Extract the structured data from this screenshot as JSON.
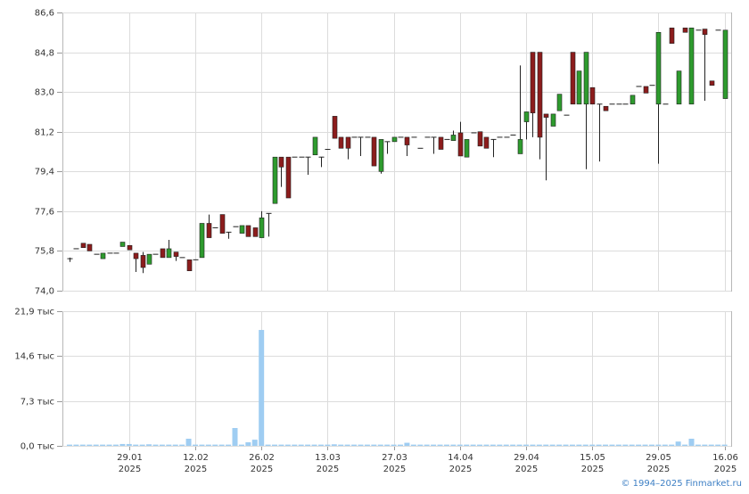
{
  "chart_data": [
    {
      "type": "candlestick",
      "up_color": "#2e9b2e",
      "down_color": "#8c1c1c",
      "open": [
        75.45,
        75.9,
        76.15,
        76.1,
        75.65,
        75.45,
        75.7,
        75.7,
        76.0,
        76.05,
        75.7,
        75.6,
        75.2,
        75.65,
        75.9,
        75.5,
        75.75,
        75.5,
        75.4,
        75.4,
        75.5,
        77.05,
        76.85,
        77.45,
        76.65,
        76.9,
        76.6,
        76.95,
        76.85,
        76.4,
        77.5,
        77.95,
        80.05,
        80.05,
        80.05,
        80.05,
        80.05,
        80.15,
        80.05,
        80.4,
        81.9,
        80.95,
        80.95,
        80.95,
        80.95,
        80.95,
        80.95,
        79.4,
        80.75,
        80.75,
        80.95,
        80.95,
        80.95,
        80.45,
        80.95,
        80.95,
        80.95,
        80.85,
        80.8,
        81.15,
        80.05,
        81.15,
        81.2,
        80.95,
        80.85,
        80.95,
        80.95,
        81.05,
        80.2,
        81.65,
        84.8,
        84.8,
        82.0,
        81.45,
        82.15,
        81.95,
        84.8,
        82.45,
        82.45,
        83.2,
        82.45,
        82.35,
        82.45,
        82.45,
        82.45,
        82.45,
        83.25,
        83.25,
        83.3,
        82.45,
        82.45,
        85.9,
        82.45,
        85.9,
        82.45,
        85.8,
        85.85,
        83.5,
        85.8,
        82.7
      ],
      "high": [
        75.5,
        75.9,
        76.15,
        76.1,
        75.65,
        75.7,
        75.7,
        75.7,
        76.2,
        76.05,
        75.7,
        75.75,
        75.65,
        75.65,
        75.9,
        76.3,
        75.75,
        75.5,
        75.4,
        75.4,
        77.05,
        77.45,
        76.85,
        77.45,
        76.65,
        76.9,
        76.95,
        76.95,
        76.85,
        77.6,
        77.5,
        80.05,
        80.05,
        80.05,
        80.05,
        80.05,
        80.05,
        80.95,
        80.05,
        80.4,
        81.9,
        80.95,
        80.95,
        80.95,
        80.95,
        80.95,
        80.95,
        80.85,
        80.75,
        80.95,
        80.95,
        80.95,
        80.95,
        80.45,
        80.95,
        80.95,
        80.95,
        80.85,
        81.25,
        81.65,
        80.85,
        81.15,
        81.2,
        80.95,
        80.85,
        80.95,
        80.95,
        81.05,
        84.2,
        82.1,
        84.8,
        84.8,
        82.0,
        82.0,
        82.9,
        81.95,
        84.8,
        83.95,
        84.8,
        83.2,
        82.45,
        82.35,
        82.45,
        82.45,
        82.45,
        82.85,
        83.25,
        83.25,
        83.3,
        85.7,
        82.45,
        85.9,
        83.95,
        85.9,
        85.9,
        85.8,
        85.85,
        83.5,
        85.8,
        85.8
      ],
      "low": [
        75.3,
        75.9,
        75.95,
        75.8,
        75.65,
        75.45,
        75.7,
        75.7,
        76.0,
        75.85,
        74.85,
        74.8,
        75.2,
        75.65,
        75.5,
        75.5,
        75.35,
        75.5,
        74.9,
        75.4,
        75.5,
        76.4,
        76.85,
        76.6,
        76.35,
        76.9,
        76.6,
        76.45,
        76.45,
        76.4,
        76.45,
        77.95,
        78.7,
        78.2,
        80.05,
        80.05,
        79.25,
        80.15,
        79.6,
        80.4,
        80.9,
        80.45,
        79.95,
        80.95,
        80.1,
        80.95,
        79.65,
        79.3,
        80.2,
        80.75,
        80.95,
        80.1,
        80.95,
        80.45,
        80.95,
        80.2,
        80.4,
        80.85,
        80.8,
        80.1,
        80.05,
        81.15,
        80.55,
        80.45,
        80.05,
        80.95,
        80.95,
        81.05,
        80.2,
        80.85,
        80.95,
        79.95,
        79.0,
        81.45,
        82.15,
        81.95,
        82.45,
        82.45,
        79.5,
        82.45,
        79.85,
        82.15,
        82.45,
        82.45,
        82.45,
        82.45,
        83.25,
        82.95,
        83.3,
        79.75,
        82.45,
        85.2,
        82.45,
        85.7,
        82.45,
        85.8,
        82.6,
        83.3,
        85.8,
        82.7
      ],
      "close": [
        75.45,
        75.9,
        75.95,
        75.8,
        75.65,
        75.7,
        75.7,
        75.7,
        76.2,
        75.85,
        75.45,
        75.05,
        75.65,
        75.65,
        75.5,
        75.9,
        75.55,
        75.5,
        74.9,
        75.4,
        77.05,
        76.4,
        76.85,
        76.6,
        76.65,
        76.9,
        76.95,
        76.45,
        76.45,
        77.3,
        77.5,
        80.05,
        79.6,
        78.2,
        80.05,
        80.05,
        80.05,
        80.95,
        80.05,
        80.4,
        80.9,
        80.45,
        80.45,
        80.95,
        80.95,
        80.95,
        79.65,
        80.85,
        80.75,
        80.95,
        80.95,
        80.6,
        80.95,
        80.45,
        80.95,
        80.95,
        80.4,
        80.85,
        81.05,
        80.1,
        80.85,
        81.15,
        80.55,
        80.45,
        80.85,
        80.95,
        80.95,
        81.05,
        80.85,
        82.1,
        82.05,
        80.95,
        81.85,
        82.0,
        82.9,
        81.95,
        82.45,
        83.95,
        84.8,
        82.45,
        82.45,
        82.15,
        82.45,
        82.45,
        82.45,
        82.85,
        83.25,
        82.95,
        83.3,
        85.7,
        82.45,
        85.2,
        83.95,
        85.7,
        85.9,
        85.8,
        85.6,
        83.3,
        85.8,
        85.8
      ],
      "ylim": [
        74.0,
        86.6
      ],
      "yticks": [
        {
          "value": 74.0,
          "label": "74,0"
        },
        {
          "value": 75.8,
          "label": "75,8"
        },
        {
          "value": 77.6,
          "label": "77,6"
        },
        {
          "value": 79.4,
          "label": "79,4"
        },
        {
          "value": 81.2,
          "label": "81,2"
        },
        {
          "value": 83.0,
          "label": "83,0"
        },
        {
          "value": 84.8,
          "label": "84,8"
        },
        {
          "value": 86.6,
          "label": "86,6"
        }
      ],
      "grid": true
    },
    {
      "type": "bar",
      "color": "#9fcdf2",
      "categories": [
        null,
        null,
        null,
        null,
        null,
        null,
        null,
        null,
        null,
        "29.01\n2025",
        null,
        null,
        null,
        null,
        null,
        null,
        null,
        null,
        null,
        "12.02\n2025",
        null,
        null,
        null,
        null,
        null,
        null,
        null,
        null,
        null,
        "26.02\n2025",
        null,
        null,
        null,
        null,
        null,
        null,
        null,
        null,
        null,
        "13.03\n2025",
        null,
        null,
        null,
        null,
        null,
        null,
        null,
        null,
        null,
        "27.03\n2025",
        null,
        null,
        null,
        null,
        null,
        null,
        null,
        null,
        null,
        "14.04\n2025",
        null,
        null,
        null,
        null,
        null,
        null,
        null,
        null,
        null,
        "29.04\n2025",
        null,
        null,
        null,
        null,
        null,
        null,
        null,
        null,
        null,
        "15.05\n2025",
        null,
        null,
        null,
        null,
        null,
        null,
        null,
        null,
        null,
        "29.05\n2025",
        null,
        null,
        null,
        null,
        null,
        null,
        null,
        null,
        null,
        "16.06\n2025"
      ],
      "values": [
        200,
        200,
        200,
        200,
        200,
        200,
        200,
        200,
        300,
        300,
        200,
        200,
        250,
        200,
        200,
        200,
        200,
        200,
        1160,
        200,
        200,
        200,
        200,
        200,
        200,
        2900,
        200,
        580,
        1000,
        18850,
        200,
        200,
        200,
        200,
        200,
        200,
        200,
        200,
        200,
        200,
        250,
        200,
        200,
        200,
        200,
        200,
        200,
        200,
        200,
        200,
        200,
        500,
        200,
        200,
        200,
        200,
        200,
        200,
        200,
        200,
        200,
        200,
        200,
        200,
        200,
        200,
        200,
        200,
        200,
        200,
        200,
        200,
        200,
        200,
        200,
        200,
        200,
        200,
        200,
        200,
        200,
        200,
        200,
        200,
        200,
        200,
        200,
        200,
        200,
        200,
        200,
        200,
        700,
        200,
        1160,
        200,
        200,
        200,
        200,
        200
      ],
      "ylim": [
        0,
        21900
      ],
      "yticks": [
        {
          "value": 0,
          "label": "0,0 тыс"
        },
        {
          "value": 7300,
          "label": "7,3 тыс"
        },
        {
          "value": 14600,
          "label": "14,6 тыс"
        },
        {
          "value": 21900,
          "label": "21,9 тыс"
        }
      ],
      "grid": true
    }
  ],
  "credit": "© 1994–2025 Finmarket.ru"
}
